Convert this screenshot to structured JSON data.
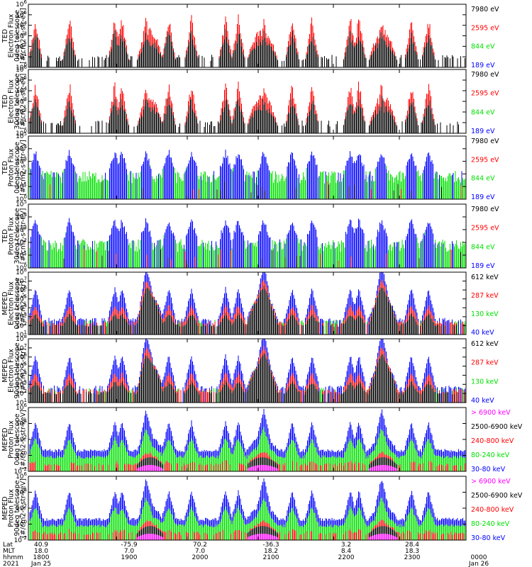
{
  "chart_data": [
    {
      "type": "line",
      "ylabel": [
        "TED",
        "Electron Flux",
        "0deg telescope",
        "[#/cm2-s-str-eV]"
      ],
      "ylog": true,
      "ylim_exp": [
        0,
        6
      ],
      "tick_labels": [
        "10^0",
        "10^1",
        "10^2",
        "10^3",
        "10^4",
        "10^5",
        "10^6"
      ],
      "series": [
        {
          "name": "7980 eV",
          "color": "#000000"
        },
        {
          "name": "2595 eV",
          "color": "#ff0000"
        },
        {
          "name": "844 eV",
          "color": "#00e000"
        },
        {
          "name": "189 eV",
          "color": "#0000ff"
        }
      ]
    },
    {
      "type": "line",
      "ylabel": [
        "TED",
        "Electron Flux",
        "30deg telescope",
        "[#/cm2-s-str-eV]"
      ],
      "ylog": true,
      "ylim_exp": [
        0,
        6
      ],
      "tick_labels": [
        "10^0",
        "10^1",
        "10^2",
        "10^3",
        "10^4",
        "10^5",
        "10^6"
      ],
      "series": [
        {
          "name": "7980 eV",
          "color": "#000000"
        },
        {
          "name": "2595 eV",
          "color": "#ff0000"
        },
        {
          "name": "844 eV",
          "color": "#00e000"
        },
        {
          "name": "189 eV",
          "color": "#0000ff"
        }
      ]
    },
    {
      "type": "line",
      "ylabel": [
        "TED",
        "Proton Flux",
        "0deg telescope",
        "[#/cm2-s-str-eV]"
      ],
      "ylog": true,
      "ylim_exp": [
        0,
        5
      ],
      "tick_labels": [
        "10^0",
        "10^1",
        "10^2",
        "10^3",
        "10^4",
        "10^5"
      ],
      "series": [
        {
          "name": "7980 eV",
          "color": "#000000"
        },
        {
          "name": "2595 eV",
          "color": "#ff0000"
        },
        {
          "name": "844 eV",
          "color": "#00e000"
        },
        {
          "name": "189 eV",
          "color": "#0000ff"
        }
      ]
    },
    {
      "type": "line",
      "ylabel": [
        "TED",
        "Proton Flux",
        "30deg telescope",
        "[#/cm2-s-str-eV]"
      ],
      "ylog": true,
      "ylim_exp": [
        0,
        5
      ],
      "tick_labels": [
        "10^0",
        "10^1",
        "10^2",
        "10^3",
        "10^4",
        "10^5"
      ],
      "series": [
        {
          "name": "7980 eV",
          "color": "#000000"
        },
        {
          "name": "2595 eV",
          "color": "#ff0000"
        },
        {
          "name": "844 eV",
          "color": "#00e000"
        },
        {
          "name": "189 eV",
          "color": "#0000ff"
        }
      ]
    },
    {
      "type": "line",
      "ylabel": [
        "MEPED",
        "Electron Flux",
        "0deg telescope",
        "[#/cm2-s-str]"
      ],
      "ylog": true,
      "ylim_exp": [
        1,
        8
      ],
      "tick_labels": [
        "10^1",
        "10^2",
        "10^3",
        "10^4",
        "10^5",
        "10^6",
        "10^7",
        "10^8"
      ],
      "series": [
        {
          "name": "612 keV",
          "color": "#000000"
        },
        {
          "name": "287 keV",
          "color": "#ff0000"
        },
        {
          "name": "130 keV",
          "color": "#00e000"
        },
        {
          "name": "40 keV",
          "color": "#0000ff"
        }
      ]
    },
    {
      "type": "line",
      "ylabel": [
        "MEPED",
        "Electron Flux",
        "90deg telescope",
        "[#/cm2-s-str]"
      ],
      "ylog": true,
      "ylim_exp": [
        1,
        8
      ],
      "tick_labels": [
        "10^1",
        "10^2",
        "10^3",
        "10^4",
        "10^5",
        "10^6",
        "10^7",
        "10^8"
      ],
      "series": [
        {
          "name": "612 keV",
          "color": "#000000"
        },
        {
          "name": "287 keV",
          "color": "#ff0000"
        },
        {
          "name": "130 keV",
          "color": "#00e000"
        },
        {
          "name": "40 keV",
          "color": "#0000ff"
        }
      ]
    },
    {
      "type": "line",
      "ylabel": [
        "MEPED",
        "Proton Flux",
        "0deg telescope",
        "[#/cm2-s-str-keV]"
      ],
      "ylog": true,
      "ylim_exp": [
        -2,
        6
      ],
      "tick_labels": [
        "10^-2",
        "10^0",
        "10^2",
        "10^4",
        "10^6"
      ],
      "series": [
        {
          "name": "> 6900 keV",
          "color": "#ff00ff"
        },
        {
          "name": "2500-6900 keV",
          "color": "#000000"
        },
        {
          "name": "240-800 keV",
          "color": "#ff0000"
        },
        {
          "name": "80-240 keV",
          "color": "#00e000"
        },
        {
          "name": "30-80 keV",
          "color": "#0000ff"
        }
      ]
    },
    {
      "type": "line",
      "ylabel": [
        "MEPED",
        "Proton Flux",
        "90deg telescope",
        "[#/cm2-s-str-keV]"
      ],
      "ylog": true,
      "ylim_exp": [
        -2,
        6
      ],
      "tick_labels": [
        "10^-2",
        "10^0",
        "10^2",
        "10^4",
        "10^6"
      ],
      "series": [
        {
          "name": "> 6900 keV",
          "color": "#ff00ff"
        },
        {
          "name": "2500-6900 keV",
          "color": "#000000"
        },
        {
          "name": "240-800 keV",
          "color": "#ff0000"
        },
        {
          "name": "80-240 keV",
          "color": "#00e000"
        },
        {
          "name": "30-80 keV",
          "color": "#0000ff"
        }
      ]
    }
  ],
  "xaxis": {
    "row_labels": [
      "Lat",
      "MLT",
      "hhmm",
      "2021"
    ],
    "ticks": [
      {
        "lat": "40.9",
        "mlt": "18.0",
        "hhmm": "1800",
        "date": "Jan 25"
      },
      {
        "lat": "-75.9",
        "mlt": "7.0",
        "hhmm": "1900",
        "date": ""
      },
      {
        "lat": "70.2",
        "mlt": "7.0",
        "hhmm": "2000",
        "date": ""
      },
      {
        "lat": "-36.3",
        "mlt": "18.2",
        "hhmm": "2100",
        "date": ""
      },
      {
        "lat": "3.2",
        "mlt": "8.4",
        "hhmm": "2200",
        "date": ""
      },
      {
        "lat": "28.4",
        "mlt": "18.3",
        "hhmm": "2300",
        "date": ""
      },
      {
        "lat": "",
        "mlt": "",
        "hhmm": "0000",
        "date": "Jan 26"
      }
    ]
  }
}
